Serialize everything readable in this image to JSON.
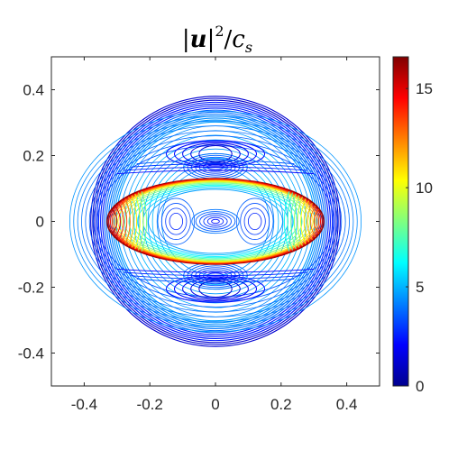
{
  "chart_data": {
    "type": "contour",
    "title": {
      "prefix": "|",
      "var": "u",
      "mid": "|",
      "sup": "2",
      "slash": "/",
      "c": "c",
      "sub": "s"
    },
    "xlim": [
      -0.5,
      0.5
    ],
    "ylim": [
      -0.5,
      0.5
    ],
    "x_ticks": [
      -0.4,
      -0.2,
      0,
      0.2,
      0.4
    ],
    "x_tick_labels": [
      "-0.4",
      "-0.2",
      "0",
      "0.2",
      "0.4"
    ],
    "y_ticks": [
      -0.4,
      -0.2,
      0,
      0.2,
      0.4
    ],
    "y_tick_labels": [
      "-0.4",
      "-0.2",
      "0",
      "0.2",
      "0.4"
    ],
    "colorbar": {
      "colormap": "jet",
      "range": [
        0,
        16.6
      ],
      "ticks": [
        0,
        5,
        10,
        15
      ],
      "tick_labels": [
        "0",
        "5",
        "10",
        "15"
      ]
    },
    "features": {
      "outer_ring_radius": 0.38,
      "bubble_center": [
        0,
        0
      ],
      "bubble_half_width": 0.33,
      "bubble_half_height": 0.13,
      "max_value": 16.6
    },
    "grid": false,
    "box": true
  }
}
